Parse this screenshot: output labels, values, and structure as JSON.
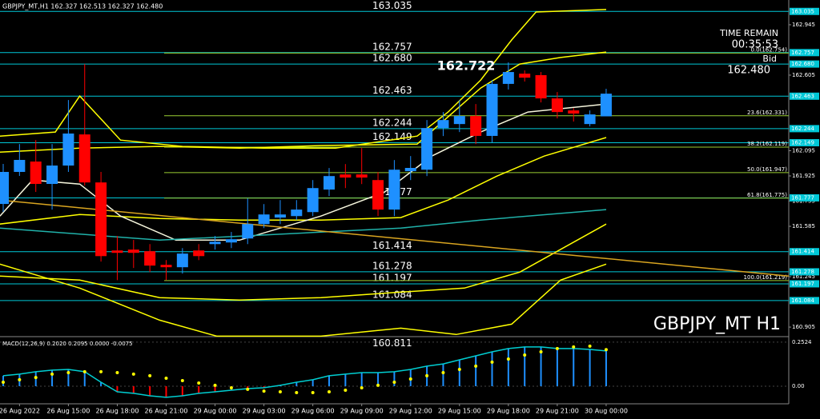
{
  "chart_data": {
    "type": "candlestick",
    "header": "GBPJPY_MT,H1  162.327 162.513 162.327 162.480",
    "watermark": "GBPJPY_MT H1",
    "time_remain_label": "TIME REMAIN",
    "time_remain": "00:35:53",
    "bid_label": "Bid",
    "bid": "162.480",
    "high_label": "162.722",
    "colors": {
      "up": "#1e90ff",
      "down": "#ff0000",
      "level": "#00c8d7",
      "fib": "#9acd32"
    },
    "ylim": [
      160.846,
      163.112
    ],
    "yticks": [
      162.945,
      162.605,
      162.095,
      161.925,
      161.755,
      161.585,
      161.245,
      160.905
    ],
    "x": [
      null,
      "26 Aug 2022",
      null,
      null,
      "26 Aug 15:00",
      null,
      null,
      "26 Aug 18:00",
      null,
      null,
      "26 Aug 21:00",
      null,
      null,
      "29 Aug 00:00",
      null,
      null,
      "29 Aug 03:00",
      null,
      null,
      "29 Aug 06:00",
      null,
      null,
      "29 Aug 09:00",
      null,
      null,
      "29 Aug 12:00",
      null,
      null,
      "29 Aug 15:00",
      null,
      null,
      "29 Aug 18:00",
      null,
      null,
      "29 Aug 21:00",
      null,
      null,
      "30 Aug 00:00"
    ],
    "open": [
      161.736,
      161.952,
      162.022,
      161.871,
      161.995,
      162.205,
      161.881,
      161.422,
      161.428,
      161.417,
      161.325,
      161.309,
      161.422,
      161.465,
      161.476,
      161.503,
      161.6,
      161.644,
      161.654,
      161.681,
      161.833,
      161.935,
      161.935,
      161.897,
      161.698,
      161.957,
      161.967,
      162.248,
      162.275,
      162.329,
      162.195,
      162.546,
      162.615,
      162.605,
      162.448,
      162.367,
      162.275,
      162.327
    ],
    "high": [
      162.006,
      162.14,
      162.167,
      162.14,
      162.437,
      162.68,
      161.952,
      161.52,
      161.493,
      161.465,
      161.357,
      161.438,
      161.465,
      161.52,
      161.547,
      161.773,
      161.735,
      161.762,
      161.762,
      161.897,
      161.978,
      162.005,
      162.113,
      161.951,
      162.032,
      162.059,
      162.302,
      162.356,
      162.437,
      162.41,
      162.572,
      162.691,
      162.637,
      162.626,
      162.491,
      162.383,
      162.367,
      162.513
    ],
    "low": [
      161.682,
      161.925,
      161.817,
      161.698,
      161.952,
      161.86,
      161.347,
      161.222,
      161.304,
      161.276,
      161.222,
      161.266,
      161.357,
      161.428,
      161.438,
      161.465,
      161.573,
      161.6,
      161.627,
      161.654,
      161.789,
      161.843,
      161.87,
      161.654,
      161.654,
      161.897,
      161.924,
      162.194,
      162.221,
      162.14,
      162.151,
      162.508,
      162.562,
      162.421,
      162.313,
      162.292,
      162.259,
      162.327
    ],
    "close": [
      161.952,
      162.033,
      161.871,
      161.995,
      162.211,
      161.881,
      161.384,
      161.406,
      161.406,
      161.32,
      161.309,
      161.401,
      161.384,
      161.481,
      161.498,
      161.6,
      161.665,
      161.665,
      161.698,
      161.843,
      161.924,
      161.914,
      161.914,
      161.698,
      161.967,
      161.979,
      162.248,
      162.302,
      162.329,
      162.195,
      162.546,
      162.626,
      162.588,
      162.448,
      162.356,
      162.346,
      162.34,
      162.48
    ],
    "overlays": [
      {
        "color": "#ffff00",
        "x": [
          -0.2,
          3.2,
          4.7,
          7.2,
          11,
          16,
          20.4,
          25.4,
          27.3,
          29.3,
          31.2,
          32.7,
          37
        ],
        "values": [
          162.194,
          162.221,
          162.464,
          162.167,
          162.124,
          162.113,
          162.113,
          162.194,
          162.356,
          162.572,
          162.842,
          163.031,
          163.048
        ]
      },
      {
        "color": "#ffff00",
        "x": [
          -0.2,
          4.7,
          9.6,
          14.5,
          19.5,
          25.4,
          29.3,
          31.7,
          34.2,
          37
        ],
        "values": [
          162.086,
          162.113,
          162.124,
          162.113,
          162.13,
          162.14,
          162.518,
          162.68,
          162.724,
          162.761
        ]
      },
      {
        "color": "#ffff00",
        "x": [
          -0.2,
          4.7,
          9.6,
          14.5,
          19.5,
          24.4,
          27.3,
          30.3,
          33.2,
          37
        ],
        "values": [
          161.6,
          161.665,
          161.638,
          161.627,
          161.627,
          161.644,
          161.762,
          161.924,
          162.059,
          162.184
        ]
      },
      {
        "color": "#ffff00",
        "x": [
          -0.2,
          4.7,
          9.6,
          14.5,
          19.5,
          24.4,
          28.3,
          31.7,
          37
        ],
        "values": [
          161.249,
          161.222,
          161.104,
          161.087,
          161.104,
          161.141,
          161.168,
          161.276,
          161.6
        ]
      },
      {
        "color": "#ffff00",
        "x": [
          -0.2,
          4.7,
          9.6,
          13.1,
          19.5,
          24.4,
          27.8,
          31.2,
          34.2,
          37
        ],
        "values": [
          161.33,
          161.168,
          160.952,
          160.844,
          160.844,
          160.898,
          160.855,
          160.925,
          161.222,
          161.33
        ]
      },
      {
        "color": "#f5f5dc",
        "x": [
          -0.2,
          1.8,
          4.7,
          7.2,
          10.6,
          14.5,
          19.5,
          23.4,
          26.3,
          29.3,
          32.2,
          37
        ],
        "values": [
          161.654,
          161.897,
          161.87,
          161.654,
          161.492,
          161.492,
          161.654,
          161.816,
          162.059,
          162.221,
          162.356,
          162.41
        ]
      },
      {
        "color": "#20b2aa",
        "x": [
          -0.2,
          9.6,
          19.5,
          24.4,
          29.3,
          37
        ],
        "values": [
          161.573,
          161.492,
          161.546,
          161.573,
          161.627,
          161.698
        ]
      },
      {
        "color": "#daa520",
        "x": [
          -0.2,
          48.2
        ],
        "values": [
          161.762,
          161.249
        ]
      }
    ],
    "levels": [
      {
        "value": 163.035,
        "label": "163.035"
      },
      {
        "value": 162.757,
        "label": "162.757"
      },
      {
        "value": 162.68,
        "label": "162.680"
      },
      {
        "value": 162.463,
        "label": "162.463"
      },
      {
        "value": 162.244,
        "label": "162.244"
      },
      {
        "value": 162.149,
        "label": "162.149"
      },
      {
        "value": 161.777,
        "label": "161.777"
      },
      {
        "value": 161.414,
        "label": "161.414"
      },
      {
        "value": 161.278,
        "label": "161.278"
      },
      {
        "value": 161.197,
        "label": "161.197"
      },
      {
        "value": 161.084,
        "label": "161.084"
      }
    ],
    "extra_level": {
      "value": 160.811,
      "label": "160.811"
    },
    "fib": [
      {
        "value": 162.754,
        "label": "0.0(162.754)"
      },
      {
        "value": 162.331,
        "label": "23.6(162.331)"
      },
      {
        "value": 162.119,
        "label": "38.2(162.119)"
      },
      {
        "value": 161.947,
        "label": "50.0(161.947)"
      },
      {
        "value": 161.775,
        "label": "61.8(161.775)"
      },
      {
        "value": 161.219,
        "label": "100.0(161.219)"
      }
    ],
    "macd": {
      "title": "MACD(12,26,9) 0.2020 0.2095 0.0000 -0.0075",
      "ylim": [
        -0.078,
        0.275
      ],
      "yticks": [
        0.2524,
        {
          "value": 0,
          "label": "0.00"
        }
      ],
      "histogram": [
        0.06,
        0.069,
        0.083,
        0.092,
        0.096,
        0.083,
        0.023,
        -0.032,
        -0.041,
        -0.055,
        -0.064,
        -0.055,
        -0.041,
        -0.032,
        -0.023,
        -0.014,
        -0.009,
        0.005,
        0.023,
        0.037,
        0.06,
        0.069,
        0.078,
        0.078,
        0.083,
        0.096,
        0.115,
        0.128,
        0.151,
        0.174,
        0.197,
        0.216,
        0.225,
        0.225,
        0.216,
        0.216,
        0.211,
        0.202
      ],
      "signal": [
        0.023,
        0.037,
        0.05,
        0.069,
        0.078,
        0.083,
        0.083,
        0.078,
        0.069,
        0.06,
        0.046,
        0.032,
        0.018,
        0.005,
        -0.009,
        -0.018,
        -0.028,
        -0.032,
        -0.037,
        -0.037,
        -0.032,
        -0.023,
        -0.009,
        0.005,
        0.023,
        0.041,
        0.06,
        0.078,
        0.096,
        0.115,
        0.138,
        0.156,
        0.179,
        0.197,
        0.216,
        0.225,
        0.23,
        0.2095
      ],
      "colors": {
        "histogram": "#1e90ff",
        "negative": "#ff0000",
        "line": "#00ced1",
        "signal": "#ffff00"
      }
    }
  }
}
